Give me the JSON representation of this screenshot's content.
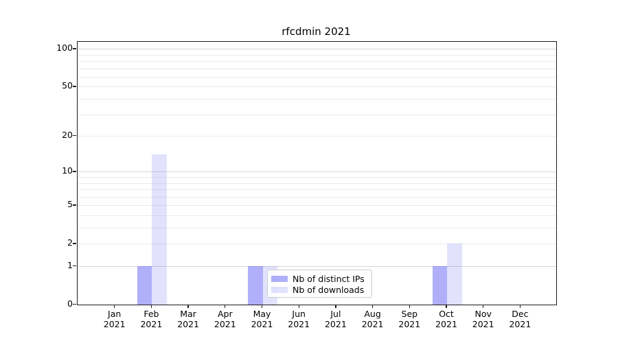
{
  "chart_data": {
    "type": "bar",
    "title": "rfcdmin 2021",
    "categories": [
      "Jan 2021",
      "Feb 2021",
      "Mar 2021",
      "Apr 2021",
      "May 2021",
      "Jun 2021",
      "Jul 2021",
      "Aug 2021",
      "Sep 2021",
      "Oct 2021",
      "Nov 2021",
      "Dec 2021"
    ],
    "series": [
      {
        "name": "Nb of distinct IPs",
        "color": "rgba(85,85,245,0.47)",
        "values": [
          0,
          1,
          0,
          0,
          1,
          0,
          0,
          0,
          0,
          1,
          0,
          0
        ]
      },
      {
        "name": "Nb of downloads",
        "color": "rgba(85,85,245,0.17)",
        "values": [
          0,
          14,
          0,
          0,
          1,
          0,
          0,
          0,
          0,
          2,
          0,
          0
        ]
      }
    ],
    "yscale": "log1p",
    "y_ticks": [
      0,
      1,
      2,
      5,
      10,
      20,
      50,
      100
    ],
    "minor_gridlines": [
      2,
      3,
      4,
      5,
      6,
      7,
      8,
      9,
      20,
      30,
      40,
      50,
      60,
      70,
      80,
      90
    ],
    "major_gridlines": [
      1,
      10,
      100
    ],
    "ylim": [
      0,
      113
    ],
    "xlabel": "",
    "ylabel": "",
    "grid": "horizontal",
    "legend_position": "lower center"
  },
  "colors": {
    "axis": "#1c1c1c",
    "major_grid": "#d6d6d6",
    "minor_grid": "#ebebeb",
    "background": "#ffffff"
  }
}
